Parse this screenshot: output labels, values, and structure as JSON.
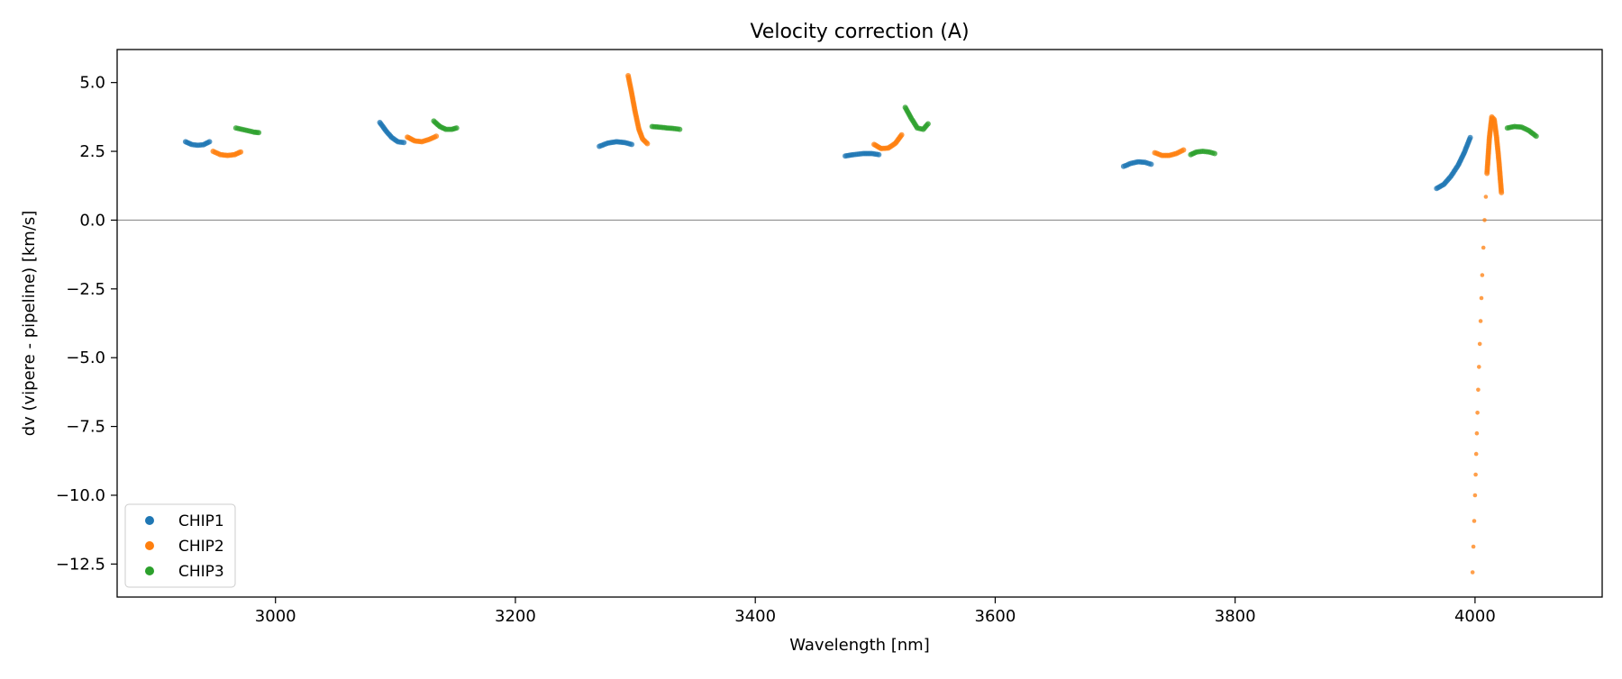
{
  "chart_data": {
    "type": "scatter",
    "title": "Velocity correction (A)",
    "xlabel": "Wavelength [nm]",
    "ylabel": "dv (vipere - pipeline) [km/s]",
    "xlim": [
      2868,
      4106
    ],
    "ylim": [
      -13.7,
      6.2
    ],
    "xticks": [
      3000,
      3200,
      3400,
      3600,
      3800,
      4000
    ],
    "yticks": [
      5.0,
      2.5,
      0.0,
      -2.5,
      -5.0,
      -7.5,
      -10.0,
      -12.5
    ],
    "xtick_labels": [
      "3000",
      "3200",
      "3400",
      "3600",
      "3800",
      "4000"
    ],
    "ytick_labels": [
      "5.0",
      "2.5",
      "0.0",
      "−2.5",
      "−5.0",
      "−7.5",
      "−10.0",
      "−12.5"
    ],
    "reference_line_y": 0.0,
    "grid": false,
    "legend_position": "lower-left",
    "series": [
      {
        "name": "CHIP1",
        "color": "#1f77b4",
        "segments": [
          {
            "x": [
              2925,
              2930,
              2935,
              2940,
              2945
            ],
            "y": [
              2.85,
              2.75,
              2.72,
              2.74,
              2.85
            ]
          },
          {
            "x": [
              3087,
              3092,
              3097,
              3102,
              3107
            ],
            "y": [
              3.55,
              3.25,
              3.0,
              2.85,
              2.82
            ]
          },
          {
            "x": [
              3270,
              3277,
              3284,
              3291,
              3297
            ],
            "y": [
              2.68,
              2.8,
              2.85,
              2.82,
              2.75
            ]
          },
          {
            "x": [
              3475,
              3482,
              3490,
              3497,
              3503
            ],
            "y": [
              2.33,
              2.38,
              2.42,
              2.42,
              2.38
            ]
          },
          {
            "x": [
              3707,
              3713,
              3719,
              3725,
              3730
            ],
            "y": [
              1.95,
              2.06,
              2.12,
              2.1,
              2.03
            ]
          },
          {
            "x": [
              3968,
              3974,
              3980,
              3986,
              3991,
              3996
            ],
            "y": [
              1.15,
              1.3,
              1.6,
              2.0,
              2.45,
              3.0
            ]
          }
        ]
      },
      {
        "name": "CHIP2",
        "color": "#ff7f0e",
        "segments": [
          {
            "x": [
              2948,
              2954,
              2960,
              2966,
              2971
            ],
            "y": [
              2.5,
              2.38,
              2.35,
              2.38,
              2.48
            ]
          },
          {
            "x": [
              3110,
              3116,
              3122,
              3128,
              3134
            ],
            "y": [
              3.02,
              2.88,
              2.85,
              2.93,
              3.05
            ]
          },
          {
            "x": [
              3294,
              3297,
              3300,
              3303,
              3306,
              3310
            ],
            "y": [
              5.25,
              4.6,
              3.9,
              3.3,
              2.95,
              2.78
            ]
          },
          {
            "x": [
              3499,
              3505,
              3511,
              3517,
              3522
            ],
            "y": [
              2.75,
              2.6,
              2.62,
              2.8,
              3.1
            ]
          },
          {
            "x": [
              3733,
              3739,
              3745,
              3751,
              3757
            ],
            "y": [
              2.45,
              2.35,
              2.35,
              2.42,
              2.55
            ]
          },
          {
            "x": [
              3998,
              4000,
              4002,
              4004,
              4006,
              4008,
              4010,
              4012,
              4014,
              4016,
              4018,
              4020,
              4022
            ],
            "y": [
              -12.8,
              -10.0,
              -7.0,
              -4.5,
              -2.0,
              0.0,
              1.7,
              3.0,
              3.75,
              3.65,
              3.0,
              2.1,
              1.0
            ]
          }
        ]
      },
      {
        "name": "CHIP3",
        "color": "#2ca02c",
        "segments": [
          {
            "x": [
              2967,
              2972,
              2977,
              2982,
              2986
            ],
            "y": [
              3.35,
              3.3,
              3.25,
              3.2,
              3.18
            ]
          },
          {
            "x": [
              3132,
              3137,
              3142,
              3147,
              3151
            ],
            "y": [
              3.6,
              3.4,
              3.3,
              3.3,
              3.35
            ]
          },
          {
            "x": [
              3314,
              3320,
              3326,
              3332,
              3337
            ],
            "y": [
              3.4,
              3.38,
              3.35,
              3.33,
              3.3
            ]
          },
          {
            "x": [
              3525,
              3530,
              3535,
              3540,
              3544
            ],
            "y": [
              4.1,
              3.7,
              3.35,
              3.3,
              3.5
            ]
          },
          {
            "x": [
              3763,
              3768,
              3773,
              3778,
              3783
            ],
            "y": [
              2.38,
              2.48,
              2.5,
              2.48,
              2.42
            ]
          },
          {
            "x": [
              4027,
              4033,
              4039,
              4045,
              4051
            ],
            "y": [
              3.35,
              3.4,
              3.38,
              3.25,
              3.05
            ]
          }
        ]
      }
    ]
  }
}
